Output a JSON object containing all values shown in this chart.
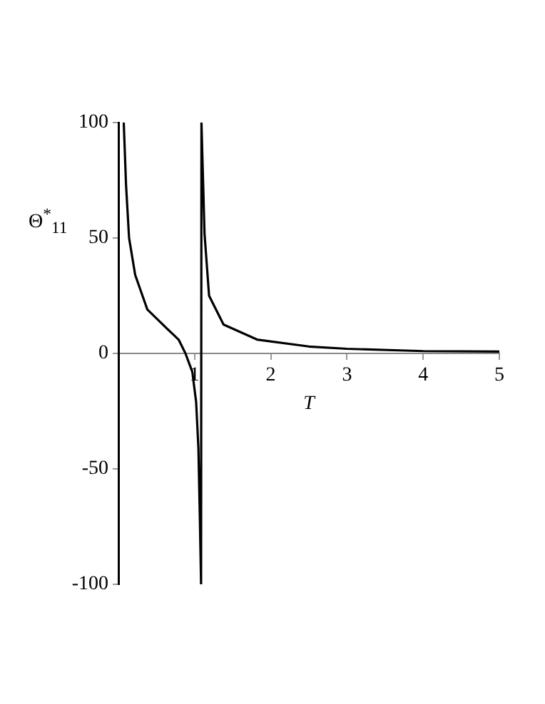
{
  "chart_data": {
    "type": "line",
    "xlabel": "T",
    "ylabel": "Θ$^{*}$$_{11}$",
    "xlim": [
      0,
      5
    ],
    "xticks": [
      1,
      2,
      3,
      4,
      5
    ],
    "ylim": [
      -100,
      100
    ],
    "yticks": [
      -100,
      -50,
      0,
      50,
      100
    ],
    "grid": false,
    "legend": false,
    "marker": "none",
    "line_style": "solid",
    "series": [
      {
        "color": "#000000",
        "x": [
          0.07,
          0.1,
          0.14,
          0.22,
          0.38,
          0.63,
          0.79,
          0.88,
          0.97,
          1.02,
          1.05,
          1.07,
          1.085,
          1.09,
          1.1,
          1.13,
          1.19,
          1.38,
          1.82,
          2.5,
          3,
          4,
          5
        ],
        "values": [
          100,
          73,
          50,
          34,
          19,
          11,
          6,
          0,
          -8,
          -21,
          -41,
          -73,
          -100,
          100,
          100,
          52,
          25,
          12.5,
          6,
          3,
          2,
          1,
          0.8
        ]
      }
    ]
  }
}
